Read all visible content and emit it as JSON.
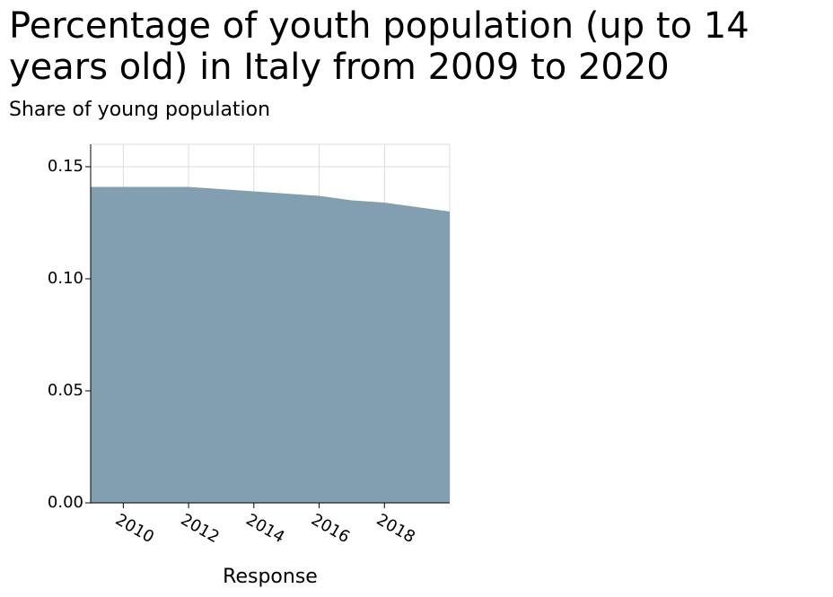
{
  "chart_data": {
    "type": "area",
    "title": "Percentage of youth population (up to 14 years old) in Italy from 2009 to 2020",
    "ylabel": "Share of young population",
    "xlabel": "Response",
    "xlim": [
      2009,
      2020
    ],
    "ylim": [
      0,
      0.16
    ],
    "x_ticks": [
      "2010",
      "2012",
      "2014",
      "2016",
      "2018"
    ],
    "y_ticks": [
      "0.00",
      "0.05",
      "0.10",
      "0.15"
    ],
    "grid": true,
    "color": "#819fb0",
    "series": [
      {
        "x": [
          2009,
          2010,
          2011,
          2012,
          2013,
          2014,
          2015,
          2016,
          2017,
          2018,
          2019,
          2020
        ],
        "values": [
          0.141,
          0.141,
          0.141,
          0.141,
          0.14,
          0.139,
          0.138,
          0.137,
          0.135,
          0.134,
          0.132,
          0.13
        ]
      }
    ]
  }
}
